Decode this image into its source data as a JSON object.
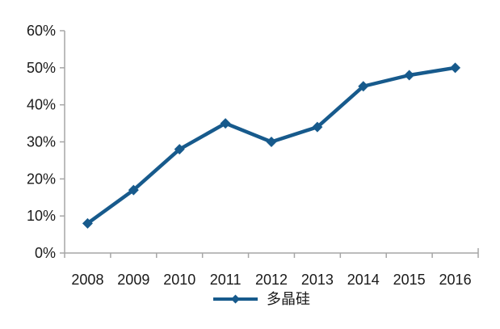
{
  "chart_data": {
    "type": "line",
    "title": "",
    "xlabel": "",
    "ylabel": "",
    "categories": [
      "2008",
      "2009",
      "2010",
      "2011",
      "2012",
      "2013",
      "2014",
      "2015",
      "2016"
    ],
    "series": [
      {
        "name": "多晶硅",
        "values": [
          8,
          17,
          28,
          35,
          30,
          34,
          45,
          48,
          50
        ]
      }
    ],
    "ylim": [
      0,
      60
    ],
    "ytick_step": 10,
    "ytick_labels": [
      "0%",
      "10%",
      "20%",
      "30%",
      "40%",
      "50%",
      "60%"
    ],
    "grid": false,
    "legend": {
      "position": "bottom",
      "entries": [
        "多晶硅"
      ]
    },
    "colors": {
      "series": "#175A8C",
      "axis": "#A6A6A6",
      "text": "#1A1A1A",
      "background": "#FFFFFF"
    }
  }
}
